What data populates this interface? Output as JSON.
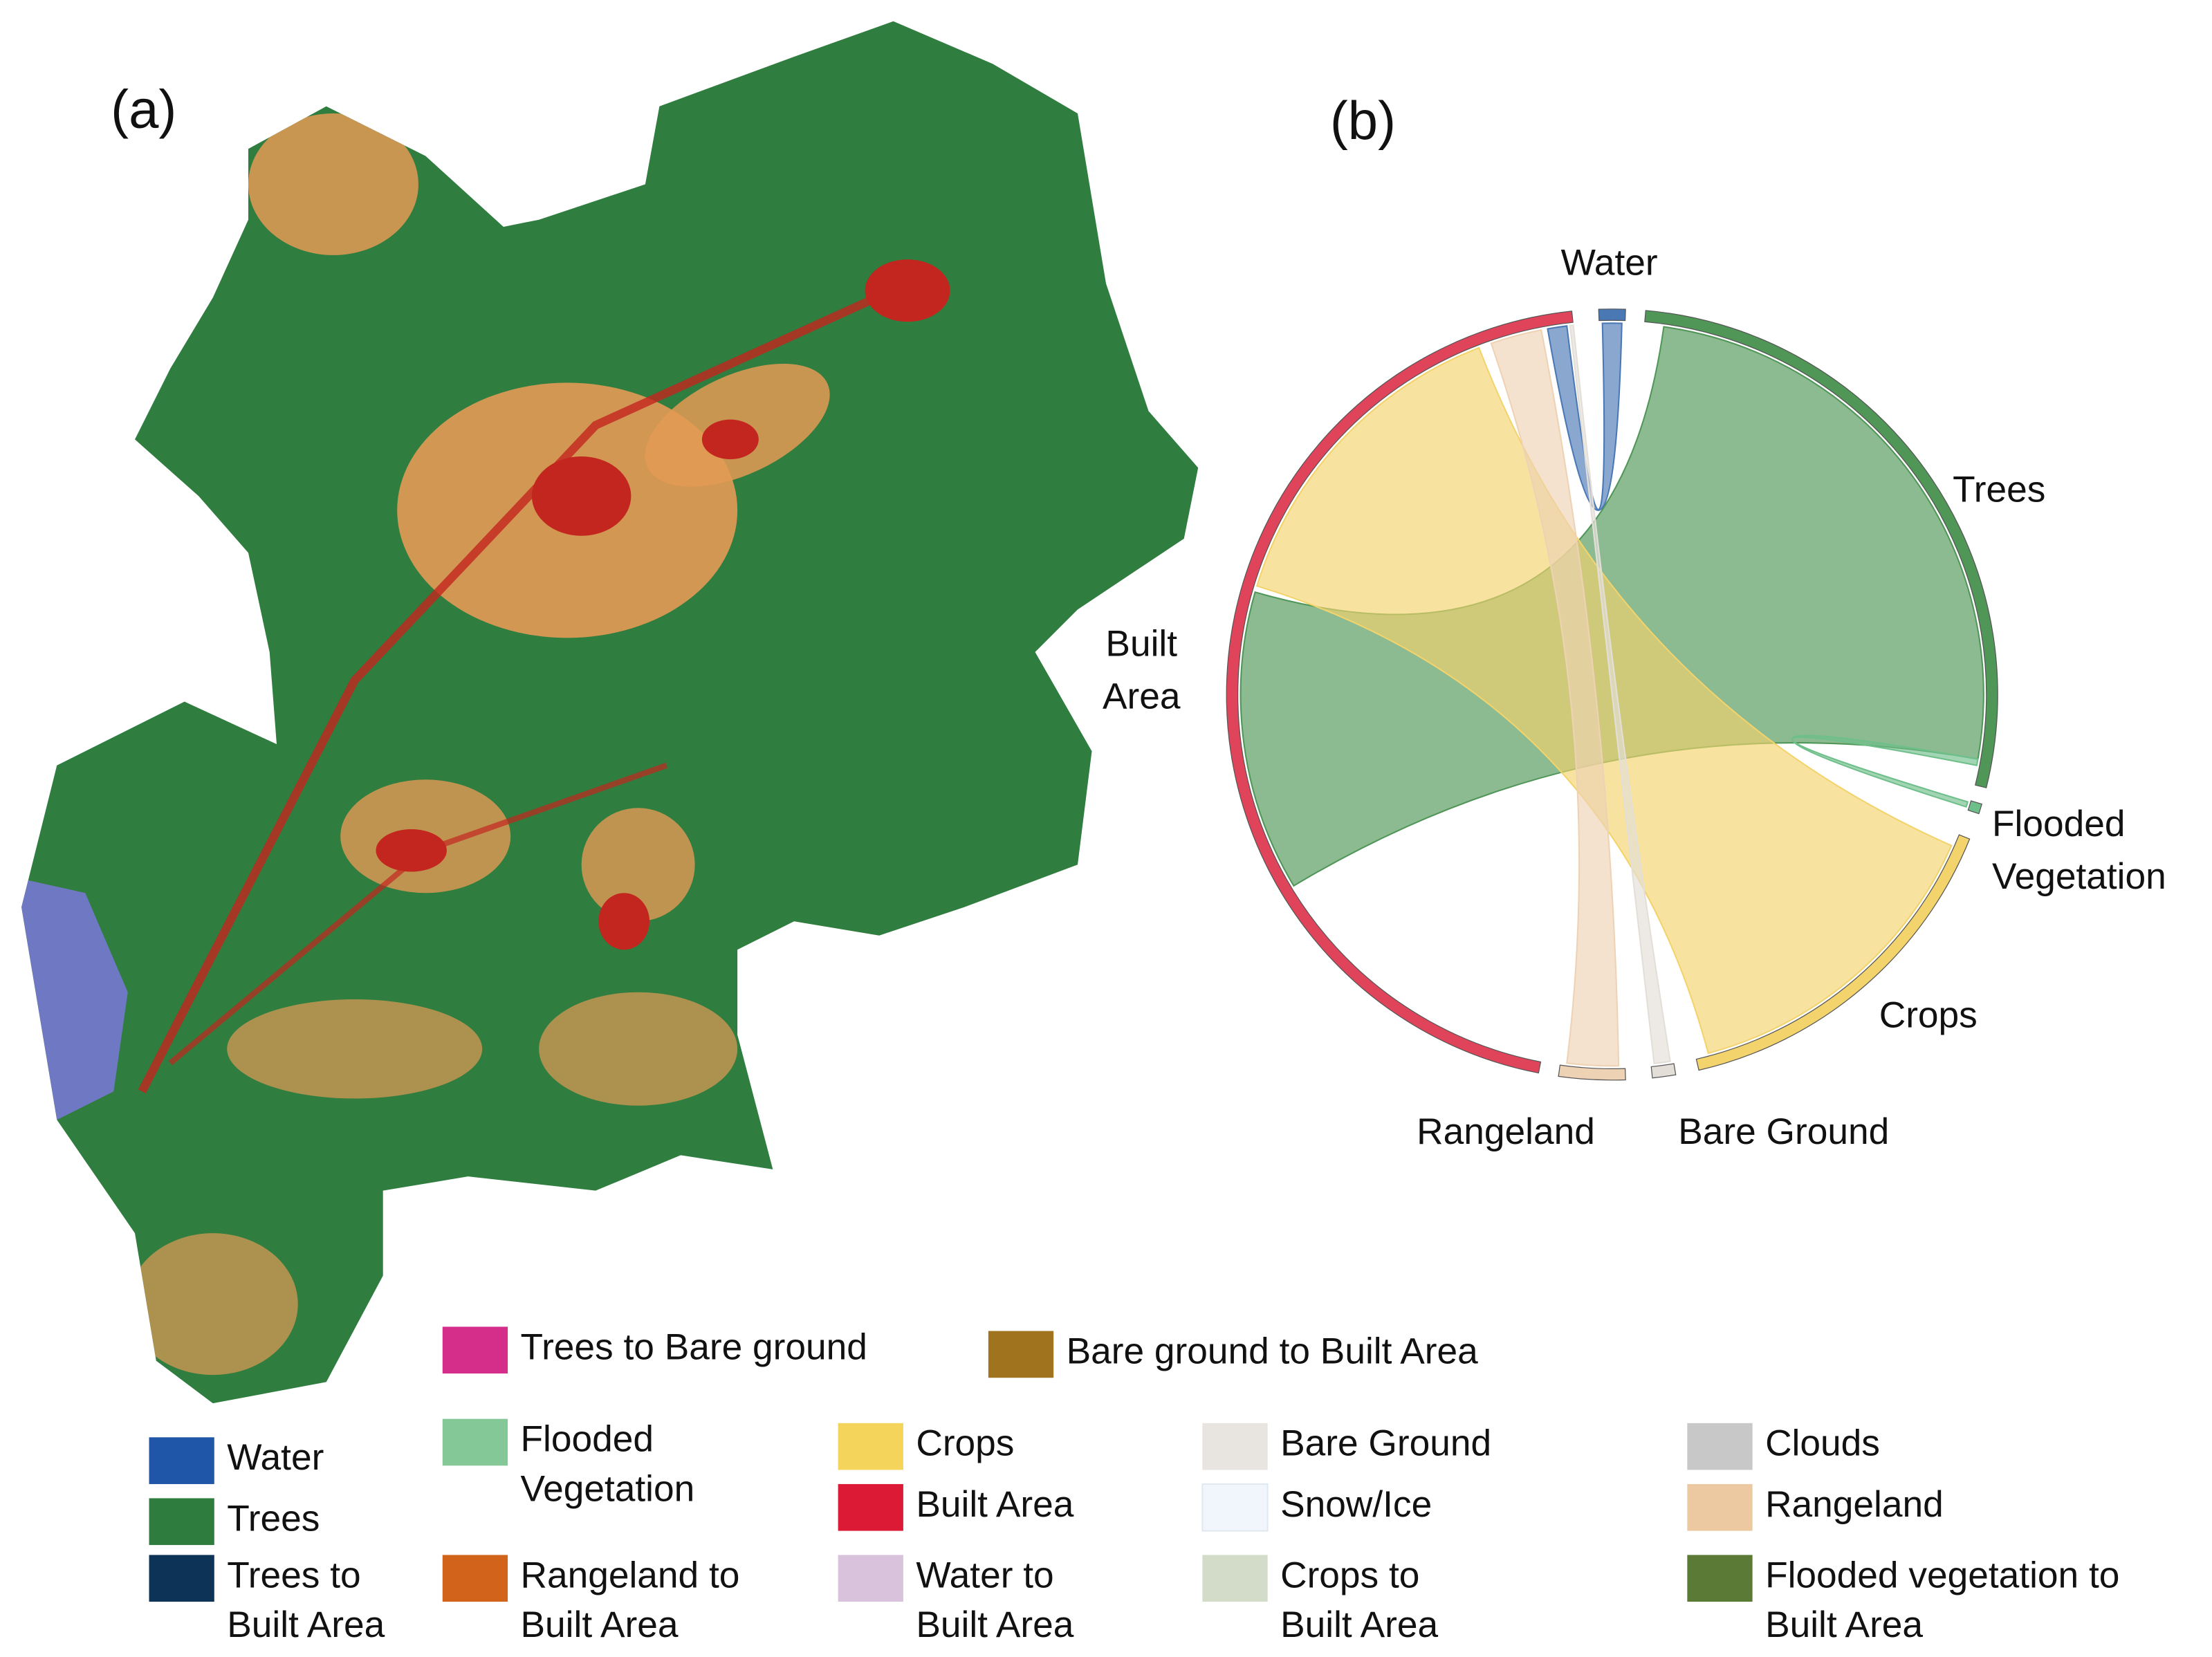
{
  "panels": [
    {
      "label": "(a)"
    },
    {
      "label": "(b)"
    }
  ],
  "chord": {
    "nodes": [
      {
        "label": [
          "Water"
        ],
        "color": "#4a78b5"
      },
      {
        "label": [
          "Trees"
        ],
        "color": "#4f9657"
      },
      {
        "label": [
          "Flooded",
          "Vegetation"
        ],
        "color": "#6fbf8a"
      },
      {
        "label": [
          "Crops"
        ],
        "color": "#f2d36c"
      },
      {
        "label": [
          "Bare Ground"
        ],
        "color": "#e3dfd8"
      },
      {
        "label": [
          "Rangeland"
        ],
        "color": "#eed2b4"
      },
      {
        "label": [
          "Built",
          "Area"
        ],
        "color": "#e0445a"
      }
    ]
  },
  "legend": {
    "items": [
      {
        "label": [
          "Trees to Bare ground"
        ],
        "color": "#d42d8a"
      },
      {
        "label": [
          "Bare ground to Built Area"
        ],
        "color": "#a0731f"
      },
      {
        "label": [
          "Water"
        ],
        "color": "#1f56a8"
      },
      {
        "label": [
          "Trees"
        ],
        "color": "#2e7d3e"
      },
      {
        "label": [
          "Trees to",
          "Built Area"
        ],
        "color": "#0d3357"
      },
      {
        "label": [
          "Flooded",
          "Vegetation"
        ],
        "color": "#84c898"
      },
      {
        "label": [
          "Rangeland to",
          "Built Area"
        ],
        "color": "#d2631a"
      },
      {
        "label": [
          "Crops"
        ],
        "color": "#f5d45c"
      },
      {
        "label": [
          "Built Area"
        ],
        "color": "#dd1a35"
      },
      {
        "label": [
          "Water to",
          "Built Area"
        ],
        "color": "#d9c3dc"
      },
      {
        "label": [
          "Bare Ground"
        ],
        "color": "#e8e4df"
      },
      {
        "label": [
          "Snow/Ice"
        ],
        "color": "#f0f6fc"
      },
      {
        "label": [
          "Crops to",
          "Built Area"
        ],
        "color": "#d3dbc9"
      },
      {
        "label": [
          "Clouds"
        ],
        "color": "#c8c8c8"
      },
      {
        "label": [
          "Rangeland"
        ],
        "color": "#ecc9a0"
      },
      {
        "label": [
          "Flooded vegetation to",
          "Built Area"
        ],
        "color": "#5a7a35"
      }
    ]
  }
}
